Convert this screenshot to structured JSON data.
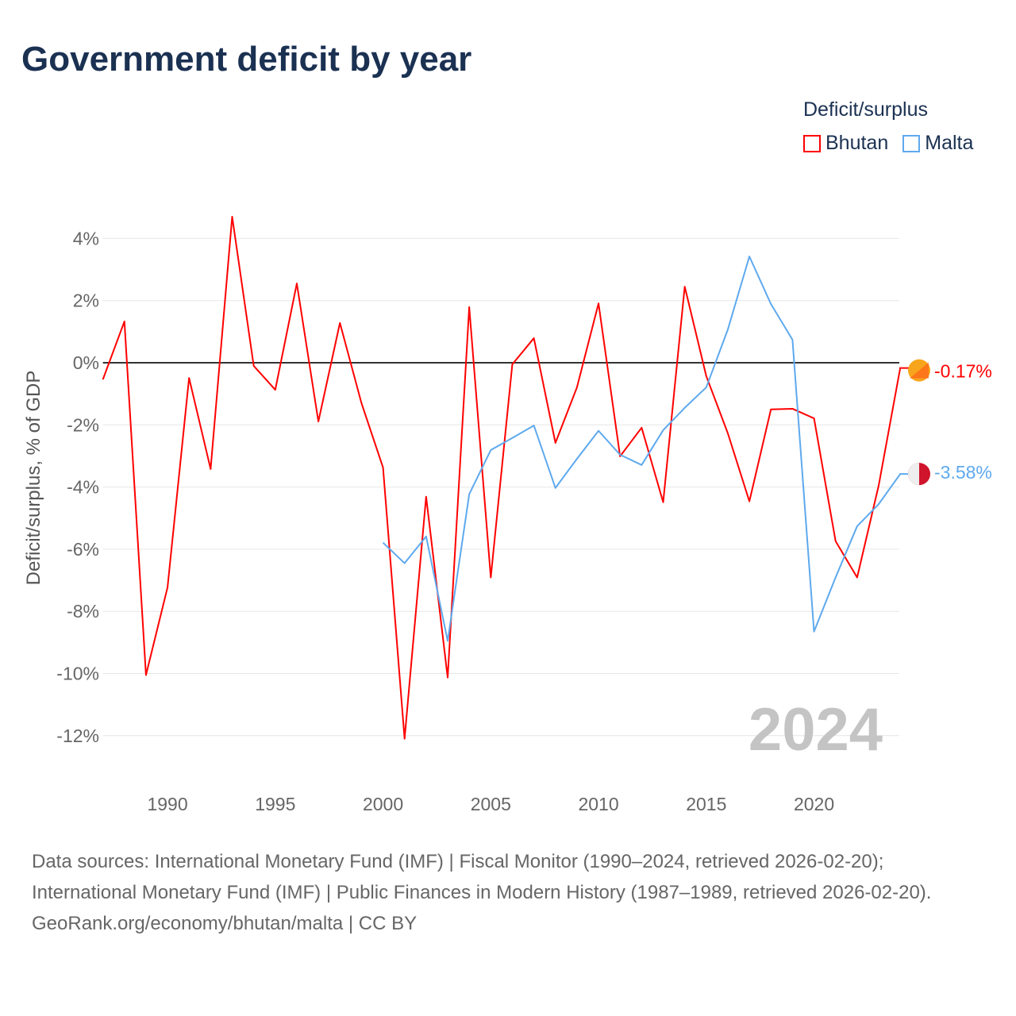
{
  "title": "Government deficit by year",
  "legend": {
    "title": "Deficit/surplus",
    "items": [
      {
        "name": "Bhutan",
        "color": "#ff0000"
      },
      {
        "name": "Malta",
        "color": "#5ea9ee"
      }
    ]
  },
  "chart_data": {
    "type": "line",
    "title": "Government deficit by year",
    "xlabel": "",
    "ylabel": "Deficit/surplus, % of GDP",
    "xlim": [
      1987,
      2024
    ],
    "ylim": [
      -13,
      4.5
    ],
    "x_ticks": [
      1990,
      1995,
      2000,
      2005,
      2010,
      2015,
      2020
    ],
    "y_ticks": [
      4,
      2,
      0,
      -2,
      -4,
      -6,
      -8,
      -10,
      -12
    ],
    "y_tick_labels": [
      "4%",
      "2%",
      "0%",
      "-2%",
      "-4%",
      "-6%",
      "-8%",
      "-10%",
      "-12%"
    ],
    "year_label": "2024",
    "series": [
      {
        "name": "Bhutan",
        "color": "#ff0000",
        "end_label": "-0.17%",
        "x": [
          1987,
          1988,
          1989,
          1990,
          1991,
          1992,
          1993,
          1994,
          1995,
          1996,
          1997,
          1998,
          1999,
          2000,
          2001,
          2002,
          2003,
          2004,
          2005,
          2006,
          2007,
          2008,
          2009,
          2010,
          2011,
          2012,
          2013,
          2014,
          2015,
          2016,
          2017,
          2018,
          2019,
          2020,
          2021,
          2022,
          2023,
          2024
        ],
        "values": [
          -0.54,
          1.33,
          -10.05,
          -7.23,
          -0.49,
          -3.42,
          4.7,
          -0.1,
          -0.87,
          2.55,
          -1.89,
          1.28,
          -1.3,
          -3.37,
          -12.1,
          -4.31,
          -10.13,
          1.79,
          -6.91,
          -0.05,
          0.79,
          -2.58,
          -0.79,
          1.91,
          -3.01,
          -2.09,
          -4.49,
          2.45,
          -0.43,
          -2.27,
          -4.46,
          -1.5,
          -1.48,
          -1.79,
          -5.74,
          -6.91,
          -3.95,
          -0.17
        ]
      },
      {
        "name": "Malta",
        "color": "#5ea9ee",
        "end_label": "-3.58%",
        "x": [
          2000,
          2001,
          2002,
          2003,
          2004,
          2005,
          2006,
          2007,
          2008,
          2009,
          2010,
          2011,
          2012,
          2013,
          2014,
          2015,
          2016,
          2017,
          2018,
          2019,
          2020,
          2021,
          2022,
          2023,
          2024
        ],
        "values": [
          -5.79,
          -6.45,
          -5.59,
          -8.95,
          -4.23,
          -2.81,
          -2.42,
          -2.02,
          -4.03,
          -3.09,
          -2.19,
          -2.96,
          -3.29,
          -2.17,
          -1.45,
          -0.79,
          1.07,
          3.42,
          1.89,
          0.74,
          -8.65,
          -6.91,
          -5.26,
          -4.55,
          -3.58
        ]
      }
    ]
  },
  "footer": {
    "sources": "Data sources: International Monetary Fund (IMF) | Fiscal Monitor (1990–2024, retrieved 2026-02-20); International Monetary Fund (IMF) | Public Finances in Modern History (1987–1989, retrieved 2026-02-20).",
    "credit": "GeoRank.org/economy/bhutan/malta | CC BY"
  }
}
